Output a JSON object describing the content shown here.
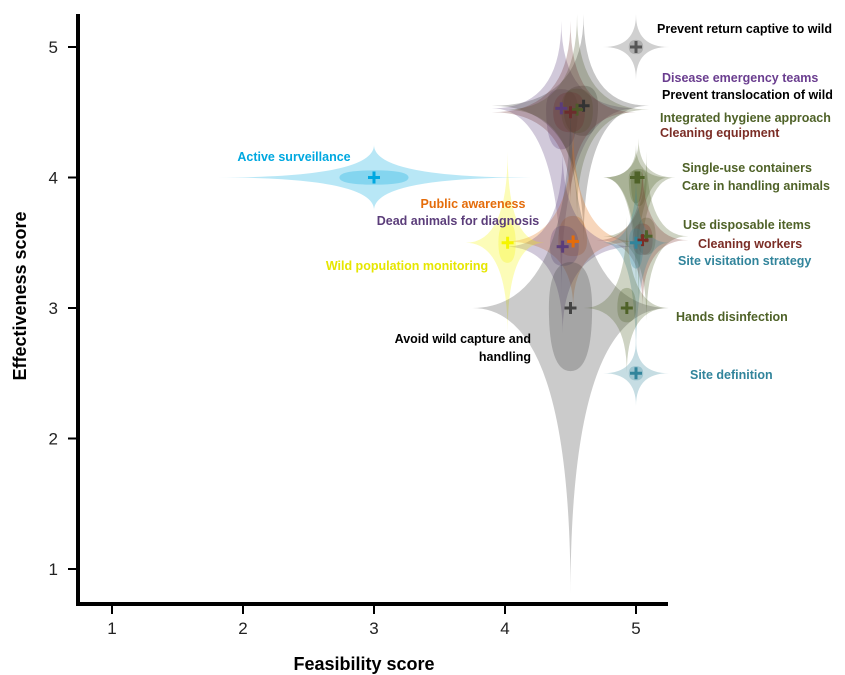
{
  "chart_data": {
    "type": "scatter",
    "xlabel": "Feasibility score",
    "ylabel": "Effectiveness score",
    "xlim": [
      0.75,
      5.25
    ],
    "ylim": [
      0.75,
      5.25
    ],
    "x_ticks": [
      "1",
      "2",
      "3",
      "4",
      "5"
    ],
    "y_ticks": [
      "1",
      "2",
      "3",
      "4",
      "5"
    ],
    "grid": false,
    "points": [
      {
        "label": "Prevent  return captive to wild",
        "x": 5.0,
        "y": 5.0,
        "x_low": 4.75,
        "x_high": 5.25,
        "y_low": 4.75,
        "y_high": 5.25,
        "color": "#555555",
        "label_color": "#000000"
      },
      {
        "label": "Disease emergency teams",
        "x": 4.43,
        "y": 4.53,
        "x_low": 3.9,
        "x_high": 5.0,
        "y_low": 3.1,
        "y_high": 5.2,
        "color": "#5b3d7a",
        "label_color": "#6a3d8f"
      },
      {
        "label": "Prevent translocation of wild",
        "x": 4.6,
        "y": 4.55,
        "x_low": 3.9,
        "x_high": 5.1,
        "y_low": 3.5,
        "y_high": 5.25,
        "color": "#333333",
        "label_color": "#000000"
      },
      {
        "label": "Integrated hygiene approach",
        "x": 4.55,
        "y": 4.52,
        "x_low": 4.0,
        "x_high": 5.1,
        "y_low": 3.7,
        "y_high": 5.25,
        "color": "#4f5a2a",
        "label_color": "#4f6228"
      },
      {
        "label": "Cleaning equipment",
        "x": 4.5,
        "y": 4.5,
        "x_low": 3.9,
        "x_high": 5.0,
        "y_low": 3.8,
        "y_high": 5.2,
        "color": "#6b2d2d",
        "label_color": "#7b2d26"
      },
      {
        "label": "Active surveillance",
        "x": 3.0,
        "y": 4.0,
        "x_low": 1.8,
        "x_high": 4.2,
        "y_low": 3.75,
        "y_high": 4.25,
        "color": "#00a8e0",
        "label_color": "#00a8e0"
      },
      {
        "label": "Single-use containers",
        "x": 5.0,
        "y": 4.0,
        "x_low": 4.75,
        "x_high": 5.25,
        "y_low": 3.1,
        "y_high": 4.25,
        "color": "#4f6228",
        "label_color": "#4f6228"
      },
      {
        "label": "Care in  handling animals",
        "x": 5.02,
        "y": 4.0,
        "x_low": 4.75,
        "x_high": 5.3,
        "y_low": 3.0,
        "y_high": 4.3,
        "color": "#4f6228",
        "label_color": "#4f6228"
      },
      {
        "label": "Public awareness",
        "x": 4.52,
        "y": 3.51,
        "x_low": 4.0,
        "x_high": 5.0,
        "y_low": 3.0,
        "y_high": 4.4,
        "color": "#e46c0a",
        "label_color": "#e46c0a"
      },
      {
        "label": "Dead animals for diagnosis",
        "x": 4.44,
        "y": 3.47,
        "x_low": 4.0,
        "x_high": 5.0,
        "y_low": 2.8,
        "y_high": 4.2,
        "color": "#5b3d7a",
        "label_color": "#5b3d7a"
      },
      {
        "label": "Wild population monitoring",
        "x": 4.02,
        "y": 3.5,
        "x_low": 3.7,
        "x_high": 4.3,
        "y_low": 2.8,
        "y_high": 4.2,
        "color": "#f5f500",
        "label_color": "#e6e600"
      },
      {
        "label": "Use disposable items",
        "x": 5.08,
        "y": 3.55,
        "x_low": 4.75,
        "x_high": 5.4,
        "y_low": 2.9,
        "y_high": 4.2,
        "color": "#4f6228",
        "label_color": "#4f6228"
      },
      {
        "label": "Cleaning workers",
        "x": 5.05,
        "y": 3.52,
        "x_low": 4.7,
        "x_high": 5.4,
        "y_low": 3.0,
        "y_high": 4.1,
        "color": "#7b2d26",
        "label_color": "#7b2d26"
      },
      {
        "label": "Site visitation strategy",
        "x": 5.0,
        "y": 3.5,
        "x_low": 4.75,
        "x_high": 5.25,
        "y_low": 2.6,
        "y_high": 4.0,
        "color": "#31849b",
        "label_color": "#31849b"
      },
      {
        "label": "Avoid wild capture and handling",
        "x": 4.5,
        "y": 3.0,
        "x_low": 3.75,
        "x_high": 5.25,
        "y_low": 0.8,
        "y_high": 4.6,
        "color": "#444444",
        "label_color": "#000000"
      },
      {
        "label": "Hands disinfection",
        "x": 4.93,
        "y": 3.0,
        "x_low": 4.6,
        "x_high": 5.25,
        "y_low": 2.5,
        "y_high": 3.7,
        "color": "#4f6228",
        "label_color": "#4f6228"
      },
      {
        "label": "Site definition",
        "x": 5.0,
        "y": 2.5,
        "x_low": 4.75,
        "x_high": 5.25,
        "y_low": 2.25,
        "y_high": 2.75,
        "color": "#31849b",
        "label_color": "#31849b"
      }
    ]
  }
}
